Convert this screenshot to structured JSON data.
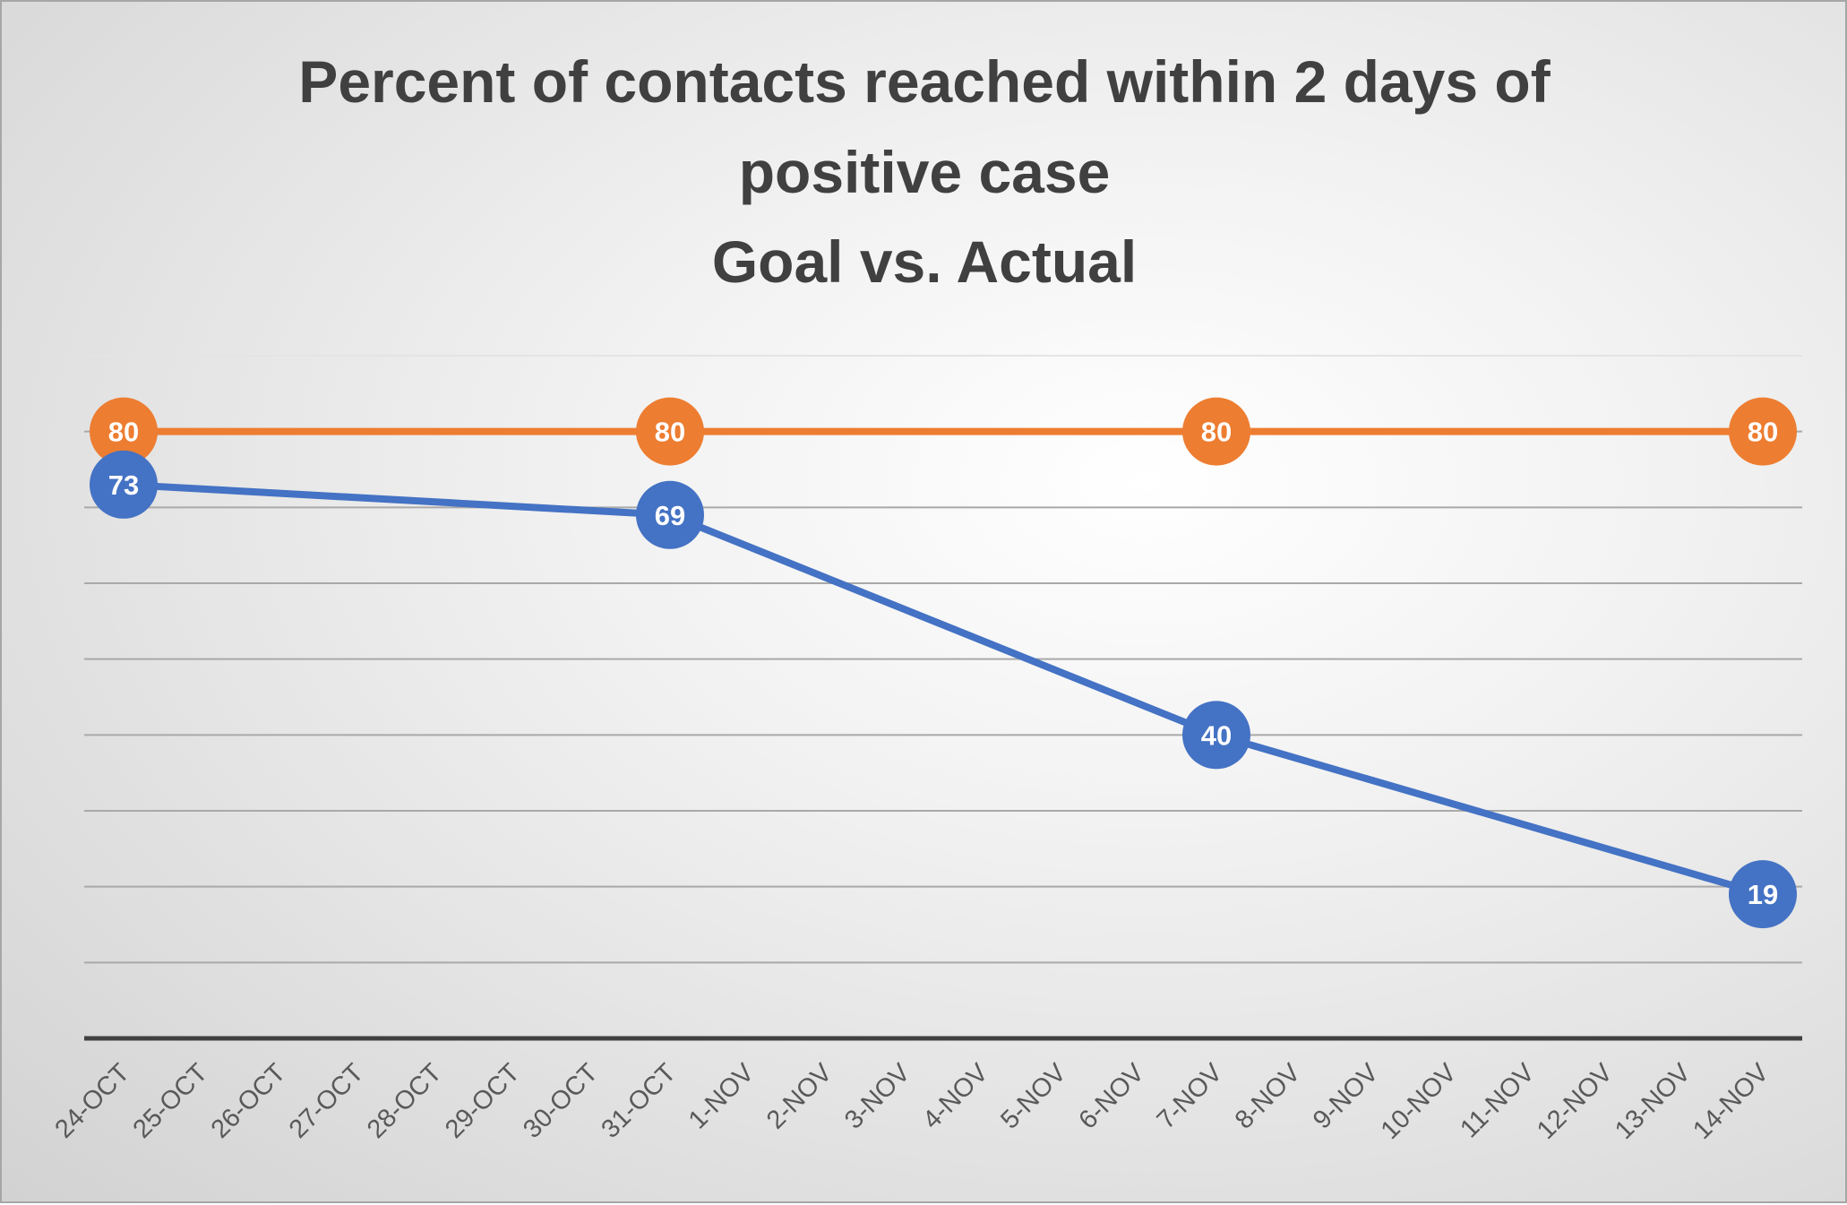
{
  "chart_data": {
    "type": "line",
    "title_lines": [
      "Percent of contacts reached within 2 days of",
      "positive case",
      "Goal vs. Actual"
    ],
    "xlabel": "",
    "ylabel": "",
    "ylim": [
      0,
      90
    ],
    "y_tick_step": 10,
    "y_tick_labels_shown": false,
    "grid": true,
    "legend": "none",
    "categories": [
      "24-OCT",
      "25-OCT",
      "26-OCT",
      "27-OCT",
      "28-OCT",
      "29-OCT",
      "30-OCT",
      "31-OCT",
      "1-NOV",
      "2-NOV",
      "3-NOV",
      "4-NOV",
      "5-NOV",
      "6-NOV",
      "7-NOV",
      "8-NOV",
      "9-NOV",
      "10-NOV",
      "11-NOV",
      "12-NOV",
      "13-NOV",
      "14-NOV"
    ],
    "series": [
      {
        "color": "#ed7d31",
        "points": [
          {
            "x": "24-OCT",
            "y": 80
          },
          {
            "x": "31-OCT",
            "y": 80
          },
          {
            "x": "7-NOV",
            "y": 80
          },
          {
            "x": "14-NOV",
            "y": 80
          }
        ]
      },
      {
        "color": "#4472c4",
        "points": [
          {
            "x": "24-OCT",
            "y": 73
          },
          {
            "x": "31-OCT",
            "y": 69
          },
          {
            "x": "7-NOV",
            "y": 40
          },
          {
            "x": "14-NOV",
            "y": 19
          }
        ]
      }
    ]
  }
}
